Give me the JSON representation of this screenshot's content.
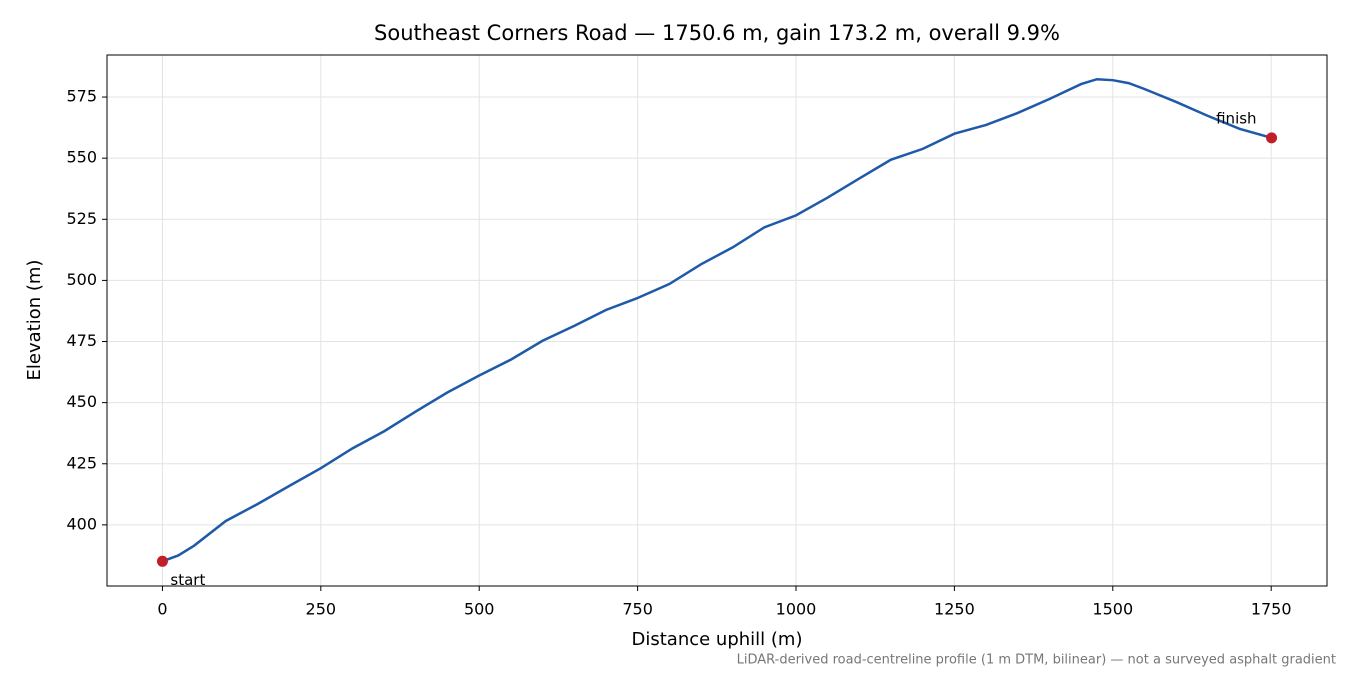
{
  "chart_data": {
    "type": "line",
    "title": "Southeast Corners Road — 1750.6 m, gain 173.2 m, overall 9.9%",
    "xlabel": "Distance uphill (m)",
    "ylabel": "Elevation (m)",
    "footnote": "LiDAR-derived road-centreline profile (1 m DTM, bilinear) — not a surveyed asphalt gradient",
    "x": [
      0,
      25,
      50,
      100,
      150,
      200,
      250,
      300,
      350,
      400,
      450,
      500,
      550,
      600,
      650,
      700,
      750,
      800,
      850,
      900,
      950,
      1000,
      1050,
      1100,
      1150,
      1200,
      1250,
      1300,
      1350,
      1400,
      1450,
      1475,
      1500,
      1525,
      1550,
      1600,
      1650,
      1700,
      1750.6
    ],
    "values": [
      385.1,
      387.5,
      391.5,
      401.6,
      408.5,
      415.9,
      423.2,
      431.3,
      438.3,
      446.4,
      454.2,
      461.1,
      467.6,
      475.3,
      481.4,
      487.9,
      492.8,
      498.5,
      506.6,
      513.5,
      521.7,
      526.6,
      533.9,
      541.7,
      549.4,
      553.8,
      560.0,
      563.6,
      568.5,
      574.2,
      580.3,
      582.3,
      581.9,
      580.7,
      578.3,
      573.0,
      567.3,
      562.0,
      558.3
    ],
    "color": "#1f5aa8",
    "annotations": [
      {
        "text": "start",
        "x": 0,
        "y": 385.1
      },
      {
        "text": "finish",
        "x": 1750.6,
        "y": 558.3
      }
    ],
    "marker_color": "#c01f2a",
    "xlim": [
      -87.5,
      1838.1
    ],
    "ylim": [
      375.0,
      592.2
    ],
    "xticks": [
      0,
      250,
      500,
      750,
      1000,
      1250,
      1500,
      1750
    ],
    "yticks": [
      400,
      425,
      450,
      475,
      500,
      525,
      550,
      575
    ],
    "grid": true
  }
}
